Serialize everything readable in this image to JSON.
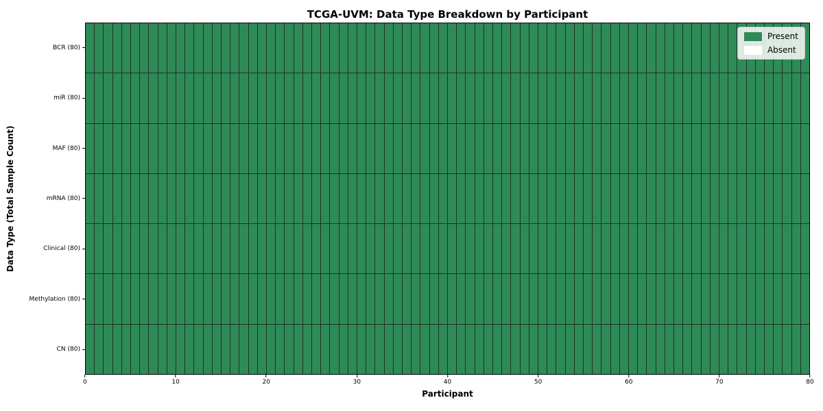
{
  "chart_data": {
    "type": "heatmap",
    "title": "TCGA-UVM: Data Type Breakdown by Participant",
    "xlabel": "Participant",
    "ylabel": "Data Type (Total Sample Count)",
    "xlim": [
      0,
      80
    ],
    "x_ticks": [
      0,
      10,
      20,
      30,
      40,
      50,
      60,
      70,
      80
    ],
    "columns": 80,
    "rows": [
      {
        "label": "BCR (80)",
        "data_type": "BCR",
        "total_samples": 80,
        "present": 80,
        "absent": 0
      },
      {
        "label": "miR (80)",
        "data_type": "miR",
        "total_samples": 80,
        "present": 80,
        "absent": 0
      },
      {
        "label": "MAF (80)",
        "data_type": "MAF",
        "total_samples": 80,
        "present": 80,
        "absent": 0
      },
      {
        "label": "mRNA (80)",
        "data_type": "mRNA",
        "total_samples": 80,
        "present": 80,
        "absent": 0
      },
      {
        "label": "Clinical (80)",
        "data_type": "Clinical",
        "total_samples": 80,
        "present": 80,
        "absent": 0
      },
      {
        "label": "Methylation (80)",
        "data_type": "Methylation",
        "total_samples": 80,
        "present": 80,
        "absent": 0
      },
      {
        "label": "CN (80)",
        "data_type": "CN",
        "total_samples": 80,
        "present": 80,
        "absent": 0
      }
    ],
    "legend": [
      {
        "label": "Present",
        "color": "#2e8b57"
      },
      {
        "label": "Absent",
        "color": "#ffffff"
      }
    ],
    "legend_position": "upper right",
    "colors": {
      "present": "#2e8b57",
      "absent": "#ffffff",
      "grid_line": "#1e3327",
      "frame": "#000000"
    },
    "grid": true
  }
}
